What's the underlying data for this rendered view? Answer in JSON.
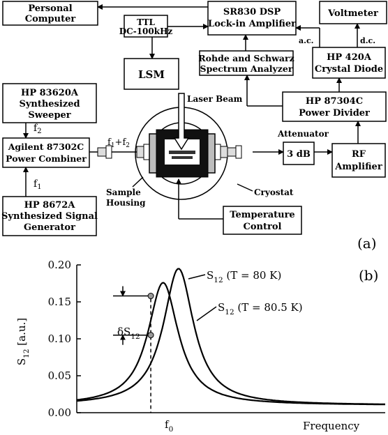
{
  "diagram": {
    "panel_label": "(a)",
    "boxes": {
      "pc": [
        "Personal",
        "Computer"
      ],
      "ttl": [
        "TTL",
        "DC-100kHz"
      ],
      "lockin": [
        "SR830 DSP",
        "Lock-in Amplifier"
      ],
      "voltmeter": "Voltmeter",
      "sweeper": [
        "HP 83620A",
        "Synthesized",
        "Sweeper"
      ],
      "lsm": "LSM",
      "spectrum": [
        "Rohde and Schwarz",
        "Spectrum Analyzer"
      ],
      "diode": [
        "HP 420A",
        "Crystal Diode"
      ],
      "divider": [
        "HP 87304C",
        "Power Divider"
      ],
      "combiner": [
        "Agilent 87302C",
        "Power Combiner"
      ],
      "attenuator": "3 dB",
      "rf": [
        "RF",
        "Amplifier"
      ],
      "generator": [
        "HP 8672A",
        "Synthesized Signal",
        "Generator"
      ],
      "temp": [
        "Temperature",
        "Control"
      ]
    },
    "labels": {
      "laser": "Laser Beam",
      "attenuator": "Attenuator",
      "cryostat": "Cryostat",
      "housing": [
        "Sample",
        "Housing"
      ],
      "ac": "a.c.",
      "dc": "d.c."
    }
  },
  "chart_data": {
    "type": "line",
    "panel_label": "(b)",
    "ylabel": "S12 [a.u.]",
    "xlabel": "Frequency",
    "y_ticks": [
      "0.20",
      "0.15",
      "0.10",
      "0.05",
      "0.00"
    ],
    "ylim": [
      0,
      0.2
    ],
    "x_tick_label": "f0",
    "grid": false,
    "annotation": "δS12",
    "series": [
      {
        "name": "S12 (T = 80 K)",
        "peak_value": 0.195,
        "peak_position": 0.33,
        "halfwidth": 0.06,
        "baseline": 0.01
      },
      {
        "name": "S12 (T = 80.5 K)",
        "peak_value": 0.176,
        "peak_position": 0.28,
        "halfwidth": 0.06,
        "baseline": 0.01
      }
    ],
    "markers": [
      0.158,
      0.105
    ]
  }
}
